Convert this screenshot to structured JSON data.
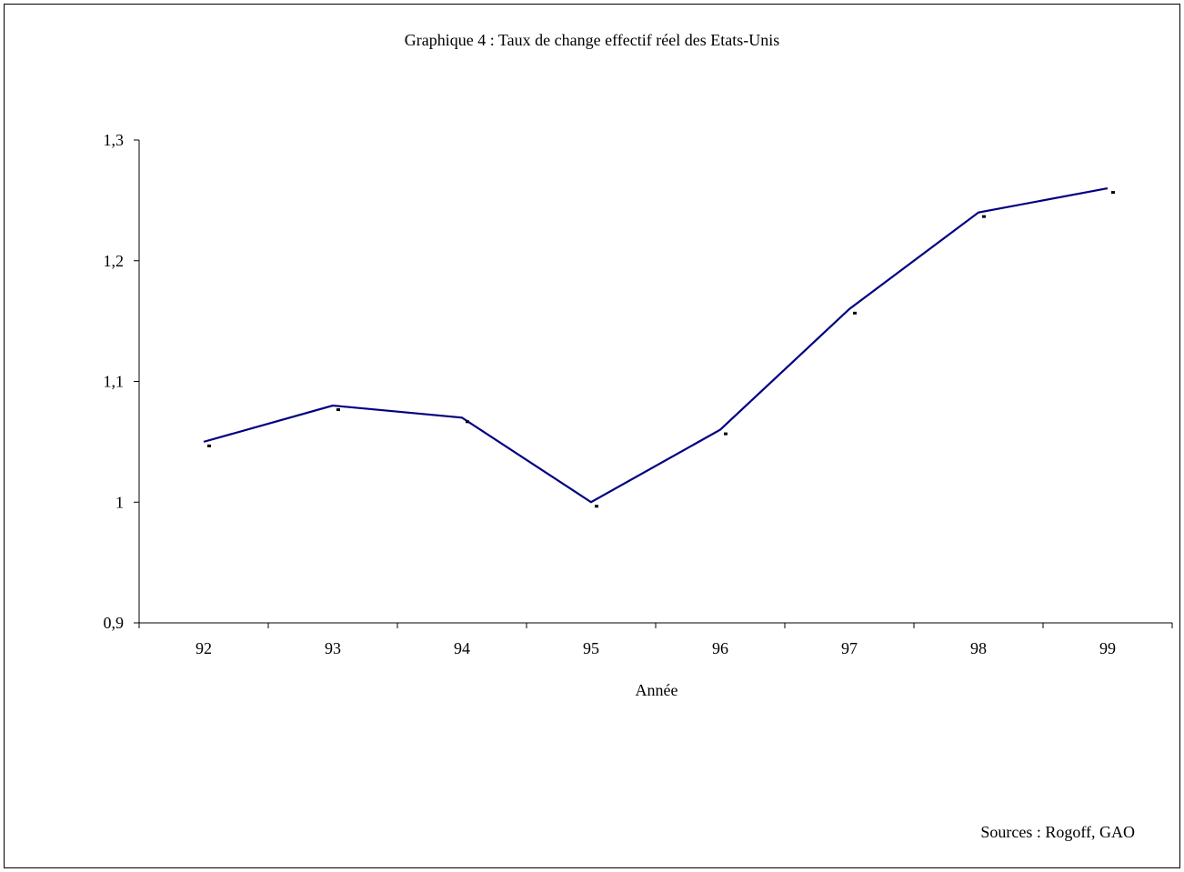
{
  "chart_data": {
    "type": "line",
    "title": "Graphique 4 : Taux de change effectif réel des Etats-Unis",
    "xlabel": "Année",
    "ylabel": "",
    "categories": [
      "92",
      "93",
      "94",
      "95",
      "96",
      "97",
      "98",
      "99"
    ],
    "series": [
      {
        "values": [
          1.05,
          1.08,
          1.07,
          1.0,
          1.06,
          1.16,
          1.24,
          1.26
        ],
        "color": "#000080"
      }
    ],
    "ylim": [
      0.9,
      1.3
    ],
    "yticks": [
      0.9,
      1.0,
      1.1,
      1.2,
      1.3
    ],
    "ytick_labels": [
      "0,9",
      "1",
      "1,1",
      "1,2",
      "1,3"
    ],
    "grid": false,
    "legend": "none",
    "source_note": "Sources : Rogoff,  GAO"
  }
}
